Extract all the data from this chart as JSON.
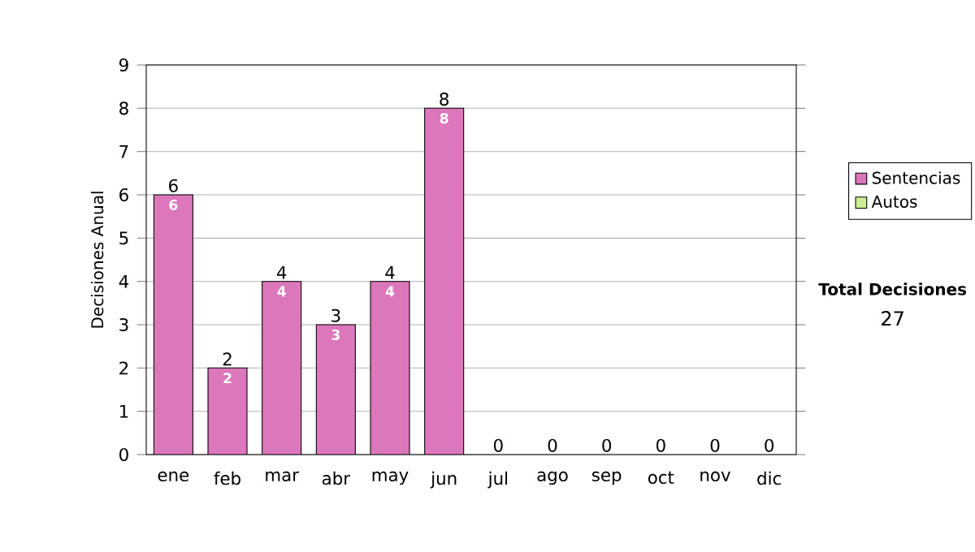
{
  "chart_data": {
    "type": "bar",
    "stacked": true,
    "ylabel": "Decisiones Anual",
    "categories": [
      "ene",
      "feb",
      "mar",
      "abr",
      "may",
      "jun",
      "jul",
      "ago",
      "sep",
      "oct",
      "nov",
      "dic"
    ],
    "series": [
      {
        "name": "Sentencias",
        "color": "#dd77bb",
        "values": [
          6,
          2,
          4,
          3,
          4,
          8,
          0,
          0,
          0,
          0,
          0,
          0
        ],
        "value_labels": [
          "6",
          "2",
          "4",
          "3",
          "4",
          "8",
          null,
          null,
          null,
          null,
          null,
          null
        ]
      },
      {
        "name": "Autos",
        "color": "#ccee99",
        "values": [
          0,
          0,
          0,
          0,
          0,
          0,
          0,
          0,
          0,
          0,
          0,
          0
        ]
      }
    ],
    "totals": [
      "6",
      "2",
      "4",
      "3",
      "4",
      "8",
      "0",
      "0",
      "0",
      "0",
      "0",
      "0"
    ],
    "ylim": [
      0,
      9
    ],
    "yticks": [
      0,
      1,
      2,
      3,
      4,
      5,
      6,
      7,
      8,
      9
    ],
    "grid": "y",
    "legend": "right",
    "annotations": [
      "Total Decisiones",
      "27"
    ]
  }
}
